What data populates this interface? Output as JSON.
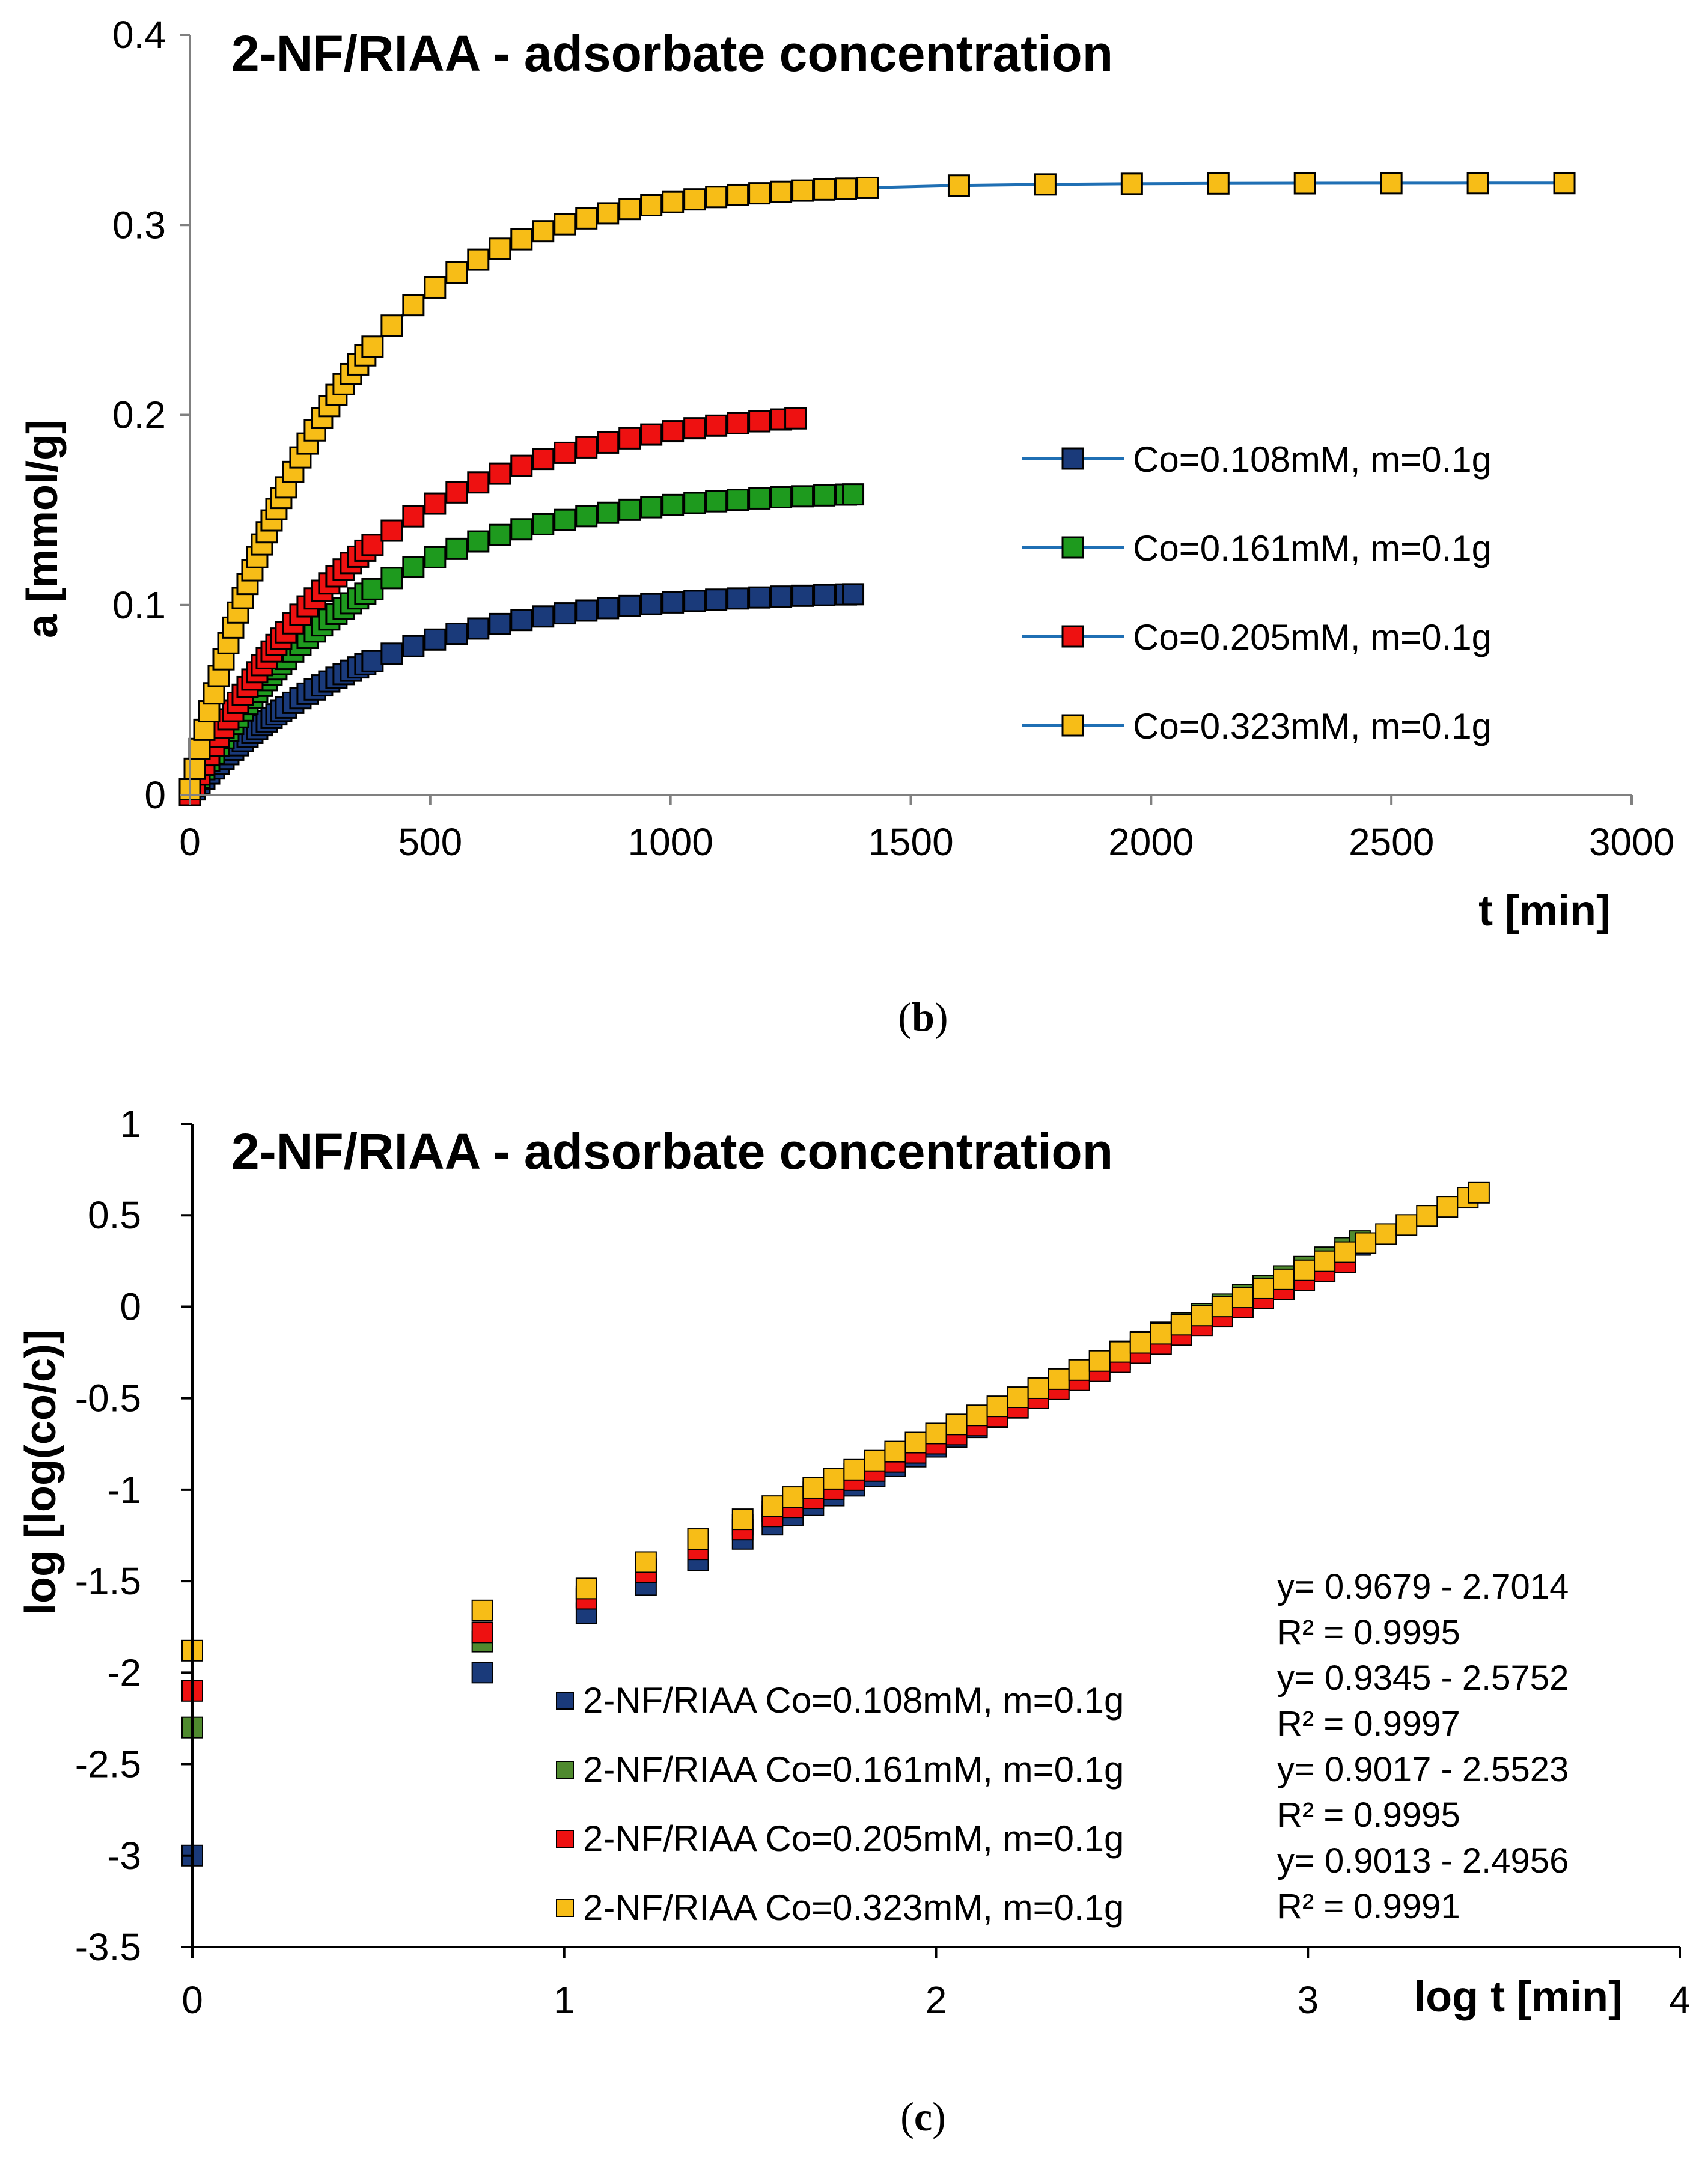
{
  "chart_data": [
    {
      "type": "line",
      "panel_label": "b",
      "title": "2-NF/RIAA - adsorbate concentration",
      "xlabel": "t [min]",
      "ylabel": "a [mmol/g]",
      "xlim": [
        0,
        3000
      ],
      "ylim": [
        0,
        0.4
      ],
      "xticks": [
        0,
        500,
        1000,
        1500,
        2000,
        2500,
        3000
      ],
      "yticks": [
        0,
        0.1,
        0.2,
        0.3,
        0.4
      ],
      "xtick_labels": [
        "0",
        "500",
        "1000",
        "1500",
        "2000",
        "2500",
        "3000"
      ],
      "ytick_labels": [
        "0",
        "0.1",
        "0.2",
        "0.3",
        "0.4"
      ],
      "line_color": "#1f6fb4",
      "series": [
        {
          "name": "Co=0.108mM, m=0.1g",
          "color": "#1a3a7a",
          "t_end": 1380,
          "a_max": 0.108,
          "tau": 360,
          "start_y": 0.0
        },
        {
          "name": "Co=0.161mM, m=0.1g",
          "color": "#1e9a1e",
          "t_end": 1380,
          "a_max": 0.161,
          "tau": 340,
          "start_y": 0.0
        },
        {
          "name": "Co=0.205mM, m=0.1g",
          "color": "#ee1111",
          "t_end": 1260,
          "a_max": 0.205,
          "tau": 370,
          "start_y": 0.0
        },
        {
          "name": "Co=0.323mM, m=0.1g",
          "color": "#f7bd17",
          "t_end": 2860,
          "a_max": 0.322,
          "tau": 290,
          "start_y": 0.003
        }
      ]
    },
    {
      "type": "scatter",
      "panel_label": "c",
      "title": "2-NF/RIAA - adsorbate concentration",
      "xlabel": "log t [min]",
      "ylabel": "log [log(co/c)]",
      "xlim": [
        0,
        4
      ],
      "ylim": [
        -3.5,
        1
      ],
      "xticks": [
        0,
        1,
        2,
        3,
        4
      ],
      "yticks": [
        1,
        0.5,
        0,
        -0.5,
        -1,
        -1.5,
        -2,
        -2.5,
        -3,
        -3.5
      ],
      "xtick_labels": [
        "0",
        "1",
        "2",
        "3",
        "4"
      ],
      "ytick_labels": [
        "1",
        "0.5",
        "0",
        "-0.5",
        "-1",
        "-1.5",
        "-2",
        "-2.5",
        "-3",
        "-3.5"
      ],
      "series": [
        {
          "name": "2-NF/RIAA Co=0.108mM, m=0.1g",
          "color": "#1a3a7a",
          "slope": 0.9679,
          "intercept": -2.7014,
          "x_end": 3.14,
          "first_y": -3.0,
          "second_y": -2.0
        },
        {
          "name": "2-NF/RIAA Co=0.161mM, m=0.1g",
          "color": "#4f8a2e",
          "slope": 0.9345,
          "intercept": -2.5752,
          "x_end": 3.14,
          "first_y": -2.3,
          "second_y": -1.83
        },
        {
          "name": "2-NF/RIAA Co=0.205mM, m=0.1g",
          "color": "#ee1111",
          "slope": 0.9017,
          "intercept": -2.5523,
          "x_end": 3.1,
          "first_y": -2.1,
          "second_y": -1.78
        },
        {
          "name": "2-NF/RIAA Co=0.323mM, m=0.1g",
          "color": "#f7bd17",
          "slope": 0.9013,
          "intercept": -2.4956,
          "x_end": 3.46,
          "first_y": -1.88,
          "second_y": -1.66
        }
      ],
      "equations": [
        "y= 0.9679 - 2.7014",
        "R² = 0.9995",
        "y= 0.9345 - 2.5752",
        "R² = 0.9997",
        "y= 0.9017 - 2.5523",
        "R² = 0.9995",
        "y= 0.9013 - 2.4956",
        "R² = 0.9991"
      ]
    }
  ],
  "captions": {
    "b": "(b)",
    "c": "(c)"
  }
}
